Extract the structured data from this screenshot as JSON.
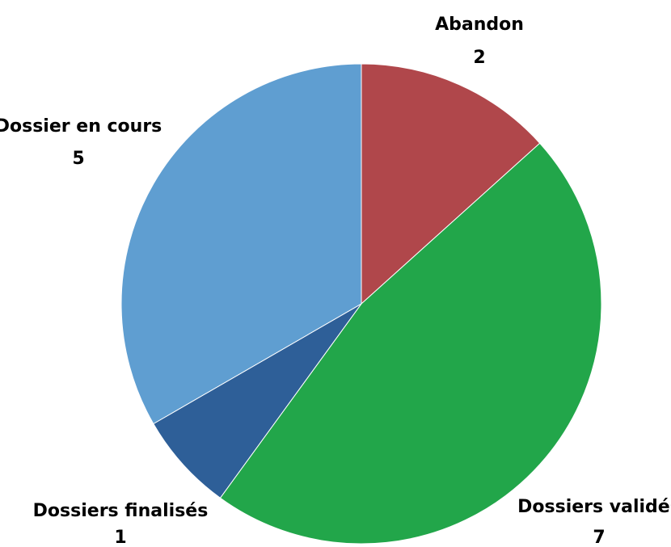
{
  "chart_data": {
    "type": "pie",
    "slices": [
      {
        "label": "Abandon",
        "value": 2,
        "color": "#b0474b"
      },
      {
        "label": "Dossiers validés",
        "value": 7,
        "color": "#22a64a"
      },
      {
        "label": "Dossiers finalisés",
        "value": 1,
        "color": "#2e5f98"
      },
      {
        "label": "Dossier en cours",
        "value": 5,
        "color": "#5f9ed1"
      }
    ],
    "start_angle_deg": 0,
    "direction": "clockwise",
    "legend": "none",
    "data_labels": "outside, category name and value"
  }
}
